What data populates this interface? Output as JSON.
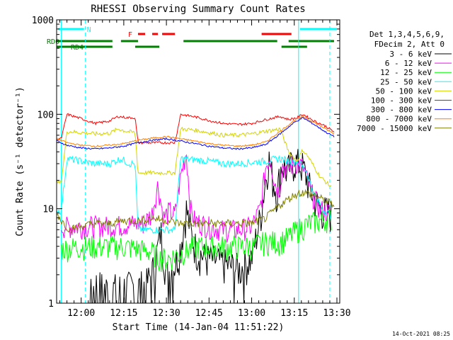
{
  "chart_data": {
    "type": "line",
    "title": "RHESSI Observing Summary Count Rates",
    "xlabel": "Start Time (14-Jan-04 11:51:22)",
    "ylabel": "Count Rate (s⁻¹ detector⁻¹)",
    "y_scale": "log",
    "ylim": [
      1,
      1000
    ],
    "xlim": [
      "11:51:22",
      "13:31:00"
    ],
    "x_ticks": [
      "12:00",
      "12:15",
      "12:30",
      "12:45",
      "13:00",
      "13:15",
      "13:30"
    ],
    "y_ticks": [
      "1",
      "10",
      "100",
      "1000"
    ],
    "footer_date": "14-Oct-2021 08:25",
    "legend": {
      "position": "right",
      "header_lines": [
        "Det 1,3,4,5,6,9,",
        "FDecim 2, Att 0"
      ]
    },
    "flags": [
      {
        "label": "N",
        "color": "#00ffff",
        "segments": [
          [
            "11:52:00",
            "12:01:00"
          ],
          [
            "13:17:00",
            "13:30:00"
          ]
        ]
      },
      {
        "label": "F",
        "color": "#ff0000",
        "segments": [
          [
            "12:20:00",
            "12:22:30"
          ],
          [
            "12:25:00",
            "12:27:00"
          ],
          [
            "12:28:30",
            "12:33:00"
          ],
          [
            "13:03:30",
            "13:14:00"
          ]
        ]
      },
      {
        "label": "RD0",
        "color": "#008000",
        "segments": [
          [
            "11:51:22",
            "12:11:00"
          ],
          [
            "12:14:00",
            "12:20:00"
          ],
          [
            "12:36:00",
            "13:09:00"
          ],
          [
            "13:13:00",
            "13:29:00"
          ]
        ]
      },
      {
        "label": "RD4",
        "color": "#008000",
        "segments": [
          [
            "11:51:22",
            "12:11:00"
          ],
          [
            "12:19:00",
            "12:27:30"
          ],
          [
            "13:10:30",
            "13:19:30"
          ]
        ]
      }
    ],
    "vlines": [
      {
        "color": "#00ffff",
        "style": "solid",
        "x": "11:53:00"
      },
      {
        "color": "#00ffff",
        "style": "dashed",
        "x": "12:01:30"
      },
      {
        "color": "#00ffff",
        "style": "solid",
        "x": "13:16:30"
      },
      {
        "color": "#00ffff",
        "style": "dashed",
        "x": "13:27:30"
      }
    ],
    "series": [
      {
        "name": "3 - 6 keV",
        "color": "#000000",
        "points": [
          [
            "11:53:00",
            1
          ],
          [
            "12:02:00",
            1
          ],
          [
            "12:05:00",
            1.6
          ],
          [
            "12:10:00",
            1.4
          ],
          [
            "12:16:00",
            1.5
          ],
          [
            "12:20:00",
            1.5
          ],
          [
            "12:23:00",
            1.6
          ],
          [
            "12:26:00",
            2.5
          ],
          [
            "12:28:00",
            6
          ],
          [
            "12:30:00",
            2
          ],
          [
            "12:33:00",
            2.6
          ],
          [
            "12:35:00",
            4
          ],
          [
            "12:37:00",
            10
          ],
          [
            "12:39:00",
            5
          ],
          [
            "12:41:00",
            3.5
          ],
          [
            "12:44:00",
            3
          ],
          [
            "12:48:00",
            2.8
          ],
          [
            "12:52:00",
            2.5
          ],
          [
            "12:56:00",
            2.3
          ],
          [
            "13:00:00",
            3
          ],
          [
            "13:03:00",
            8
          ],
          [
            "13:06:00",
            35
          ],
          [
            "13:07:30",
            20
          ],
          [
            "13:09:00",
            15
          ],
          [
            "13:10:30",
            30
          ],
          [
            "13:12:30",
            25
          ],
          [
            "13:15:00",
            32
          ],
          [
            "13:18:00",
            28
          ],
          [
            "13:21:00",
            15
          ],
          [
            "13:24:00",
            10
          ],
          [
            "13:28:00",
            9
          ]
        ]
      },
      {
        "name": "6 - 12 keV",
        "color": "#ff00ff",
        "points": [
          [
            "11:53:00",
            6.5
          ],
          [
            "12:00:00",
            6.5
          ],
          [
            "12:05:00",
            6.6
          ],
          [
            "12:10:00",
            6.6
          ],
          [
            "12:15:00",
            6.8
          ],
          [
            "12:19:00",
            7
          ],
          [
            "12:22:00",
            7
          ],
          [
            "12:25:00",
            9
          ],
          [
            "12:27:00",
            18
          ],
          [
            "12:29:00",
            8
          ],
          [
            "12:31:00",
            9.5
          ],
          [
            "12:33:00",
            8.5
          ],
          [
            "12:35:00",
            22
          ],
          [
            "12:37:00",
            40
          ],
          [
            "12:38:30",
            10
          ],
          [
            "12:40:00",
            7.5
          ],
          [
            "12:45:00",
            6.5
          ],
          [
            "12:50:00",
            6
          ],
          [
            "12:55:00",
            6
          ],
          [
            "13:00:00",
            6.5
          ],
          [
            "13:03:00",
            10
          ],
          [
            "13:05:00",
            28
          ],
          [
            "13:06:30",
            36
          ],
          [
            "13:08:00",
            20
          ],
          [
            "13:09:30",
            15
          ],
          [
            "13:11:00",
            30
          ],
          [
            "13:12:30",
            25
          ],
          [
            "13:15:00",
            32
          ],
          [
            "13:18:00",
            28
          ],
          [
            "13:21:00",
            15
          ],
          [
            "13:24:00",
            10
          ],
          [
            "13:28:00",
            9
          ]
        ]
      },
      {
        "name": "12 - 25 keV",
        "color": "#00ff00",
        "points": [
          [
            "11:53:00",
            3.8
          ],
          [
            "12:00:00",
            4
          ],
          [
            "12:05:00",
            4
          ],
          [
            "12:10:00",
            4
          ],
          [
            "12:15:00",
            4
          ],
          [
            "12:20:00",
            3.8
          ],
          [
            "12:25:00",
            3.5
          ],
          [
            "12:28:00",
            3
          ],
          [
            "12:31:00",
            3
          ],
          [
            "12:36:00",
            3.5
          ],
          [
            "12:40:00",
            4
          ],
          [
            "12:45:00",
            4
          ],
          [
            "12:50:00",
            4
          ],
          [
            "12:55:00",
            4
          ],
          [
            "13:00:00",
            4
          ],
          [
            "13:05:00",
            4.5
          ],
          [
            "13:10:00",
            4.5
          ],
          [
            "13:13:00",
            5
          ],
          [
            "13:16:00",
            6
          ],
          [
            "13:20:00",
            7
          ],
          [
            "13:24:00",
            7.5
          ],
          [
            "13:28:00",
            8
          ]
        ]
      },
      {
        "name": "25 - 50 keV",
        "color": "#00ffff",
        "points": [
          [
            "11:51:30",
            9.5
          ],
          [
            "11:53:00",
            9.5
          ],
          [
            "11:55:00",
            34
          ],
          [
            "12:00:00",
            32
          ],
          [
            "12:05:00",
            30
          ],
          [
            "12:10:00",
            30
          ],
          [
            "12:14:00",
            34
          ],
          [
            "12:17:00",
            30
          ],
          [
            "12:19:00",
            30
          ],
          [
            "12:20:00",
            6
          ],
          [
            "12:26:00",
            6
          ],
          [
            "12:33:00",
            6
          ],
          [
            "12:35:00",
            34
          ],
          [
            "12:40:00",
            33
          ],
          [
            "12:45:00",
            32
          ],
          [
            "12:50:00",
            30
          ],
          [
            "12:55:00",
            30
          ],
          [
            "13:00:00",
            31
          ],
          [
            "13:05:00",
            32
          ],
          [
            "13:10:00",
            34
          ],
          [
            "13:13:00",
            32
          ],
          [
            "13:16:00",
            32
          ],
          [
            "13:19:00",
            26
          ],
          [
            "13:22:00",
            14
          ],
          [
            "13:25:00",
            10
          ],
          [
            "13:28:00",
            8.5
          ]
        ]
      },
      {
        "name": "50 - 100 keV",
        "color": "#d4d400",
        "points": [
          [
            "11:51:30",
            19
          ],
          [
            "11:53:00",
            19
          ],
          [
            "11:55:00",
            66
          ],
          [
            "12:00:00",
            64
          ],
          [
            "12:05:00",
            62
          ],
          [
            "12:10:00",
            63
          ],
          [
            "12:13:00",
            70
          ],
          [
            "12:16:00",
            66
          ],
          [
            "12:19:00",
            64
          ],
          [
            "12:20:00",
            24
          ],
          [
            "12:26:00",
            24
          ],
          [
            "12:33:00",
            24
          ],
          [
            "12:35:00",
            70
          ],
          [
            "12:40:00",
            68
          ],
          [
            "12:45:00",
            64
          ],
          [
            "12:50:00",
            60
          ],
          [
            "12:55:00",
            60
          ],
          [
            "13:00:00",
            62
          ],
          [
            "13:05:00",
            66
          ],
          [
            "13:10:00",
            70
          ],
          [
            "13:13:00",
            40
          ],
          [
            "13:16:00",
            32
          ],
          [
            "13:18:00",
            42
          ],
          [
            "13:20:00",
            35
          ],
          [
            "13:24:00",
            22
          ],
          [
            "13:28:00",
            17
          ]
        ]
      },
      {
        "name": "100 - 300 keV",
        "color": "#ff0000",
        "points": [
          [
            "11:51:30",
            55
          ],
          [
            "11:53:00",
            55
          ],
          [
            "11:55:00",
            100
          ],
          [
            "12:00:00",
            90
          ],
          [
            "12:05:00",
            80
          ],
          [
            "12:10:00",
            85
          ],
          [
            "12:13:00",
            95
          ],
          [
            "12:16:00",
            92
          ],
          [
            "12:19:00",
            92
          ],
          [
            "12:20:00",
            50
          ],
          [
            "12:33:00",
            50
          ],
          [
            "12:35:00",
            100
          ],
          [
            "12:40:00",
            94
          ],
          [
            "12:45:00",
            86
          ],
          [
            "12:50:00",
            80
          ],
          [
            "12:55:00",
            78
          ],
          [
            "13:00:00",
            80
          ],
          [
            "13:05:00",
            88
          ],
          [
            "13:10:00",
            95
          ],
          [
            "13:13:00",
            88
          ],
          [
            "13:16:00",
            92
          ],
          [
            "13:18:00",
            100
          ],
          [
            "13:22:00",
            85
          ],
          [
            "13:26:00",
            75
          ],
          [
            "13:29:00",
            65
          ]
        ]
      },
      {
        "name": "300 - 800 keV",
        "color": "#0000ff",
        "points": [
          [
            "11:51:30",
            52
          ],
          [
            "11:55:00",
            47
          ],
          [
            "12:00:00",
            44
          ],
          [
            "12:05:00",
            43
          ],
          [
            "12:10:00",
            44
          ],
          [
            "12:15:00",
            46
          ],
          [
            "12:20:00",
            50
          ],
          [
            "12:25:00",
            53
          ],
          [
            "12:30:00",
            55
          ],
          [
            "12:35:00",
            52
          ],
          [
            "12:40:00",
            49
          ],
          [
            "12:45:00",
            46
          ],
          [
            "12:50:00",
            44
          ],
          [
            "12:55:00",
            43
          ],
          [
            "13:00:00",
            44
          ],
          [
            "13:05:00",
            48
          ],
          [
            "13:10:00",
            62
          ],
          [
            "13:15:00",
            82
          ],
          [
            "13:18:00",
            92
          ],
          [
            "13:22:00",
            78
          ],
          [
            "13:26:00",
            65
          ],
          [
            "13:29:00",
            58
          ]
        ]
      },
      {
        "name": "800 - 7000 keV",
        "color": "#ff8000",
        "points": [
          [
            "11:51:30",
            55
          ],
          [
            "11:55:00",
            50
          ],
          [
            "12:00:00",
            47
          ],
          [
            "12:05:00",
            46
          ],
          [
            "12:10:00",
            47
          ],
          [
            "12:15:00",
            49
          ],
          [
            "12:20:00",
            53
          ],
          [
            "12:25:00",
            56
          ],
          [
            "12:30:00",
            58
          ],
          [
            "12:35:00",
            55
          ],
          [
            "12:40:00",
            52
          ],
          [
            "12:45:00",
            49
          ],
          [
            "12:50:00",
            47
          ],
          [
            "12:55:00",
            46
          ],
          [
            "13:00:00",
            47
          ],
          [
            "13:05:00",
            51
          ],
          [
            "13:10:00",
            66
          ],
          [
            "13:15:00",
            86
          ],
          [
            "13:18:00",
            95
          ],
          [
            "13:22:00",
            82
          ],
          [
            "13:26:00",
            70
          ],
          [
            "13:29:00",
            62
          ]
        ]
      },
      {
        "name": "7000 - 15000 keV",
        "color": "#808000",
        "points": [
          [
            "11:51:30",
            9
          ],
          [
            "11:53:00",
            7.5
          ],
          [
            "11:56:00",
            6
          ],
          [
            "12:00:00",
            6.5
          ],
          [
            "12:05:00",
            7
          ],
          [
            "12:10:00",
            7
          ],
          [
            "12:15:00",
            7.5
          ],
          [
            "12:20:00",
            7.5
          ],
          [
            "12:25:00",
            8
          ],
          [
            "12:30:00",
            7.5
          ],
          [
            "12:35:00",
            7
          ],
          [
            "12:40:00",
            7
          ],
          [
            "12:45:00",
            7
          ],
          [
            "12:50:00",
            7
          ],
          [
            "12:55:00",
            7
          ],
          [
            "13:00:00",
            7
          ],
          [
            "13:05:00",
            8
          ],
          [
            "13:10:00",
            11
          ],
          [
            "13:15:00",
            14
          ],
          [
            "13:18:00",
            15
          ],
          [
            "13:22:00",
            14
          ],
          [
            "13:26:00",
            12
          ],
          [
            "13:29:00",
            11
          ]
        ]
      }
    ]
  }
}
